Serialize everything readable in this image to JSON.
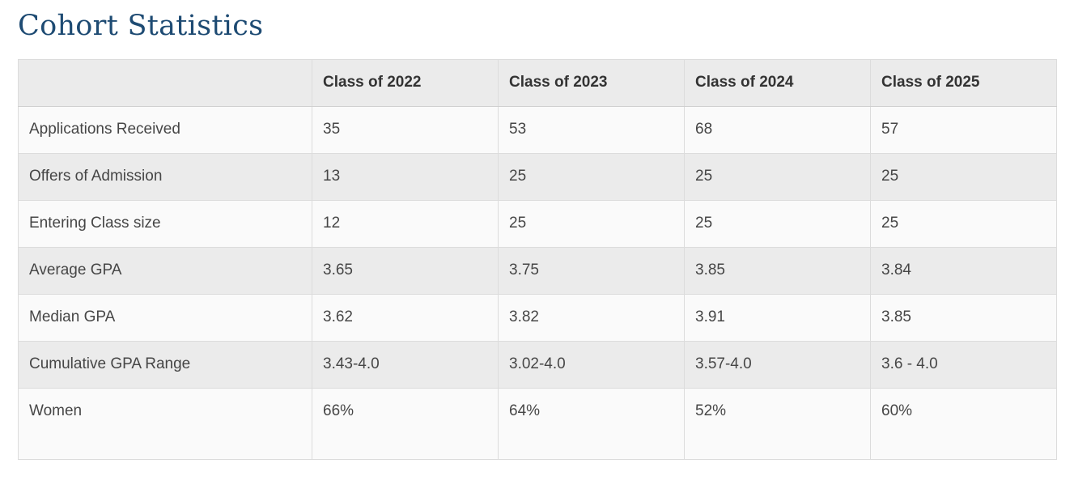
{
  "page": {
    "title": "Cohort Statistics"
  },
  "table": {
    "columns": [
      "",
      "Class of 2022",
      "Class of 2023",
      "Class of 2024",
      "Class of 2025"
    ],
    "rows": [
      {
        "label": "Applications Received",
        "values": [
          "35",
          "53",
          "68",
          "57"
        ]
      },
      {
        "label": "Offers of Admission",
        "values": [
          "13",
          "25",
          "25",
          "25"
        ]
      },
      {
        "label": "Entering Class size",
        "values": [
          "12",
          "25",
          "25",
          "25"
        ]
      },
      {
        "label": "Average GPA",
        "values": [
          "3.65",
          "3.75",
          "3.85",
          "3.84"
        ]
      },
      {
        "label": "Median GPA",
        "values": [
          "3.62",
          "3.82",
          "3.91",
          "3.85"
        ]
      },
      {
        "label": "Cumulative GPA Range",
        "values": [
          "3.43-4.0",
          "3.02-4.0",
          "3.57-4.0",
          "3.6 - 4.0"
        ]
      },
      {
        "label": "Women",
        "values": [
          "66%",
          "64%",
          "52%",
          "60%"
        ]
      }
    ]
  },
  "colors": {
    "title_text": "#1e4b73",
    "header_bg": "#ebebeb",
    "row_light_bg": "#fafafa",
    "row_shaded_bg": "#ebebeb",
    "border": "#dcdcdc",
    "header_text": "#333333",
    "cell_text": "#464646"
  }
}
